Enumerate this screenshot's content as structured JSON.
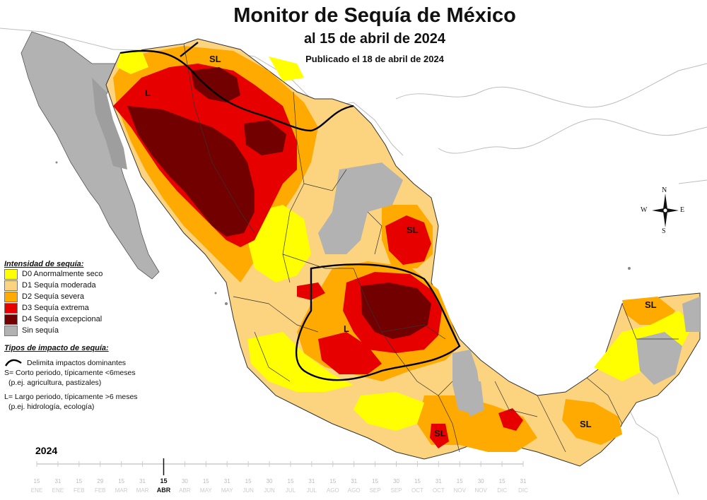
{
  "title": "Monitor de Sequía de México",
  "subtitle": "al 15 de abril de 2024",
  "published": "Publicado el 18 de abril de 2024",
  "legend": {
    "intensity_heading": "Intensidad de sequía:",
    "items": [
      {
        "label": "D0 Anormalmente seco",
        "color": "#ffff00"
      },
      {
        "label": "D1 Sequía moderada",
        "color": "#fcd37f"
      },
      {
        "label": "D2 Sequía severa",
        "color": "#ffaa00"
      },
      {
        "label": "D3 Sequía extrema",
        "color": "#e60000"
      },
      {
        "label": "D4 Sequía excepcional",
        "color": "#730000"
      },
      {
        "label": "Sin sequía",
        "color": "#b2b2b2"
      }
    ],
    "impact_heading": "Tipos de impacto de sequía:",
    "impact_line": "Delimita impactos dominantes",
    "impact_s1": "S= Corto periodo, típicamente <6meses",
    "impact_s2": "(p.ej. agricultura, pastizales)",
    "impact_l1": "L= Largo periodo, típicamente >6 meses",
    "impact_l2": "(p.ej. hidrología, ecología)"
  },
  "map_labels": {
    "sl_north": "SL",
    "l_northwest": "L",
    "sl_northeast": "SL",
    "l_central": "L",
    "sl_yucatan": "SL",
    "sl_south": "SL",
    "sl_guerrero": "SL"
  },
  "compass": {
    "n": "N",
    "s": "S",
    "e": "E",
    "w": "W"
  },
  "timeline": {
    "year": "2024",
    "ticks": [
      {
        "d": "15",
        "m": "ENE"
      },
      {
        "d": "31",
        "m": "ENE"
      },
      {
        "d": "15",
        "m": "FEB"
      },
      {
        "d": "29",
        "m": "FEB"
      },
      {
        "d": "15",
        "m": "MAR"
      },
      {
        "d": "31",
        "m": "MAR"
      },
      {
        "d": "15",
        "m": "ABR"
      },
      {
        "d": "30",
        "m": "ABR"
      },
      {
        "d": "15",
        "m": "MAY"
      },
      {
        "d": "31",
        "m": "MAY"
      },
      {
        "d": "15",
        "m": "JUN"
      },
      {
        "d": "30",
        "m": "JUN"
      },
      {
        "d": "15",
        "m": "JUL"
      },
      {
        "d": "31",
        "m": "JUL"
      },
      {
        "d": "15",
        "m": "AGO"
      },
      {
        "d": "31",
        "m": "AGO"
      },
      {
        "d": "15",
        "m": "SEP"
      },
      {
        "d": "30",
        "m": "SEP"
      },
      {
        "d": "15",
        "m": "OCT"
      },
      {
        "d": "31",
        "m": "OCT"
      },
      {
        "d": "15",
        "m": "NOV"
      },
      {
        "d": "30",
        "m": "NOV"
      },
      {
        "d": "15",
        "m": "DIC"
      },
      {
        "d": "31",
        "m": "DIC"
      }
    ],
    "current_index": 6
  }
}
